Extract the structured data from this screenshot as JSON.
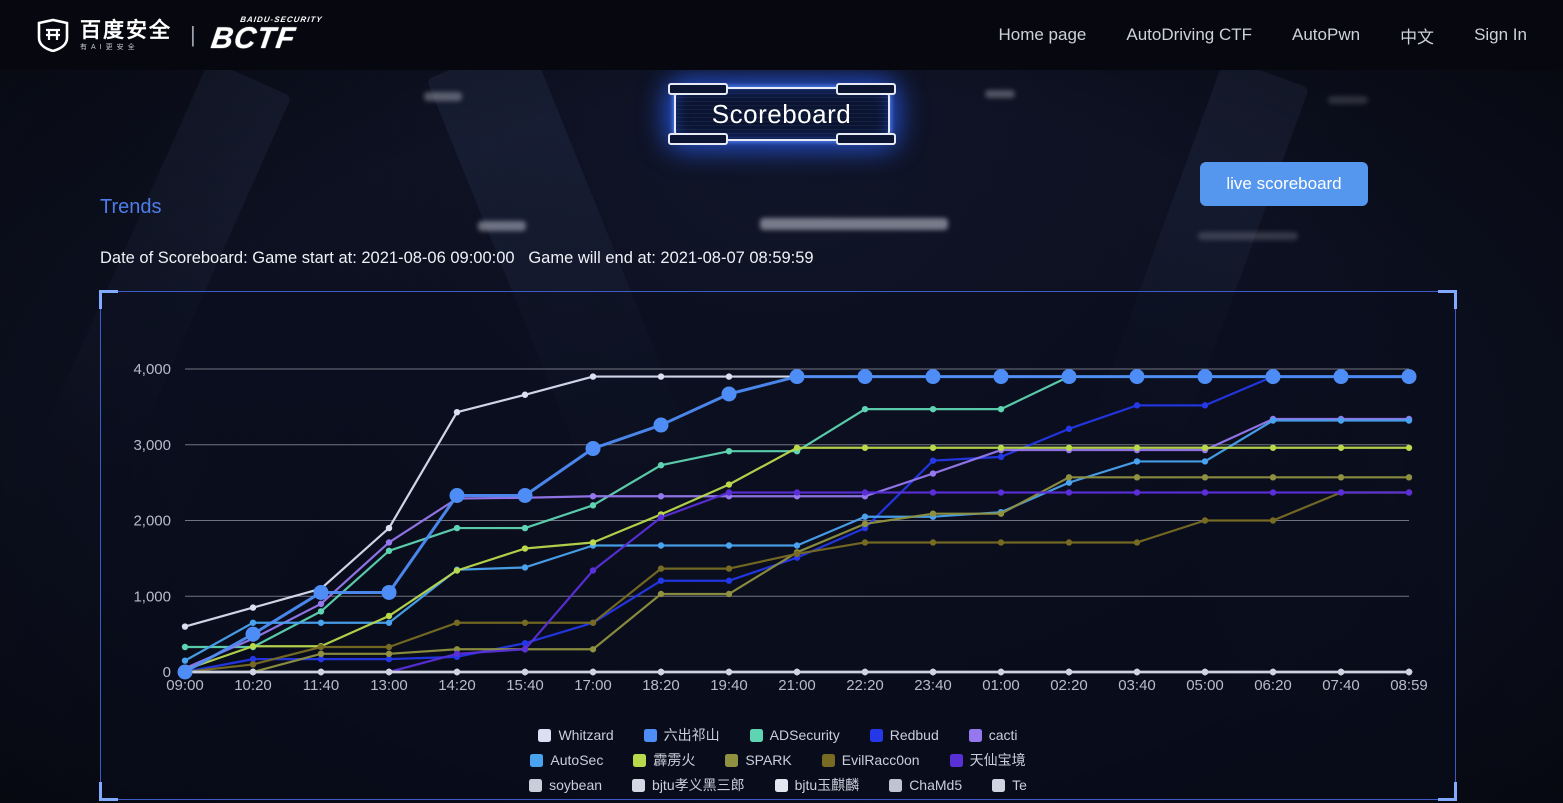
{
  "navbar": {
    "brand_cn": "百度安全",
    "brand_sub": "有AI更安全",
    "bctf_top": "BAIDU-SECURITY",
    "bctf": "BCTF",
    "items": [
      {
        "label": "Home page"
      },
      {
        "label": "AutoDriving CTF"
      },
      {
        "label": "AutoPwn"
      },
      {
        "label": "中文"
      },
      {
        "label": "Sign In"
      }
    ]
  },
  "header": {
    "title": "Scoreboard",
    "live_button_label": "live scoreboard"
  },
  "section": {
    "title": "Trends",
    "date_line": "Date of Scoreboard: Game start at: 2021-08-06 09:00:00   Game will end at: 2021-08-07 08:59:59"
  },
  "colors": {
    "accent_blue": "#4e7de9",
    "button_blue": "#5596ee",
    "panel_border": "#4868e6",
    "axis_text": "#b6bcc9",
    "gridline": "#c6cad4"
  },
  "chart_data": {
    "type": "line",
    "title": "Score trends",
    "xlabel": "",
    "ylabel": "",
    "x": [
      "09:00",
      "10:20",
      "11:40",
      "13:00",
      "14:20",
      "15:40",
      "17:00",
      "18:20",
      "19:40",
      "21:00",
      "22:20",
      "23:40",
      "01:00",
      "02:20",
      "03:40",
      "05:00",
      "06:20",
      "07:40",
      "08:59"
    ],
    "ylim": [
      0,
      4000
    ],
    "yticks": [
      "0",
      "1,000",
      "2,000",
      "3,000",
      "4,000"
    ],
    "grid": true,
    "legend_position": "bottom",
    "series": [
      {
        "name": "Whitzard",
        "color": "#dadff2",
        "emphasis": false,
        "values": [
          600,
          850,
          1100,
          1900,
          3430,
          3660,
          3900,
          3900,
          3900,
          3900,
          3900,
          3900,
          3900,
          3900,
          3900,
          3900,
          3900,
          3900,
          3900
        ]
      },
      {
        "name": "六出祁山",
        "color": "#4e8df5",
        "emphasis": true,
        "values": [
          0,
          500,
          1050,
          1050,
          2330,
          2330,
          2950,
          3260,
          3670,
          3900,
          3900,
          3900,
          3900,
          3900,
          3900,
          3900,
          3900,
          3900,
          3900
        ]
      },
      {
        "name": "ADSecurity",
        "color": "#5fd4b2",
        "emphasis": false,
        "values": [
          330,
          330,
          800,
          1600,
          1900,
          1900,
          2200,
          2730,
          2915,
          2915,
          3470,
          3470,
          3470,
          3900,
          3900,
          3900,
          3900,
          3900,
          3900
        ]
      },
      {
        "name": "Redbud",
        "color": "#2438e8",
        "emphasis": false,
        "values": [
          0,
          170,
          170,
          170,
          200,
          380,
          650,
          1205,
          1205,
          1510,
          1900,
          2790,
          2840,
          3210,
          3520,
          3520,
          3900,
          3900,
          3900
        ]
      },
      {
        "name": "cacti",
        "color": "#9678ee",
        "emphasis": false,
        "values": [
          50,
          440,
          900,
          1710,
          2290,
          2300,
          2320,
          2320,
          2320,
          2320,
          2320,
          2620,
          2930,
          2930,
          2930,
          2930,
          3340,
          3340,
          3340
        ]
      },
      {
        "name": "AutoSec",
        "color": "#4aa3ef",
        "emphasis": false,
        "values": [
          150,
          650,
          650,
          650,
          1350,
          1380,
          1670,
          1670,
          1670,
          1670,
          2050,
          2050,
          2110,
          2500,
          2780,
          2780,
          3320,
          3320,
          3320
        ]
      },
      {
        "name": "霹雳火",
        "color": "#b9d94d",
        "emphasis": false,
        "values": [
          30,
          340,
          340,
          740,
          1340,
          1630,
          1710,
          2080,
          2475,
          2960,
          2960,
          2960,
          2960,
          2960,
          2960,
          2960,
          2960,
          2960,
          2960
        ]
      },
      {
        "name": "SPARK",
        "color": "#8f9140",
        "emphasis": false,
        "values": [
          0,
          0,
          240,
          240,
          300,
          300,
          300,
          1030,
          1030,
          1580,
          1955,
          2090,
          2090,
          2570,
          2570,
          2570,
          2570,
          2570,
          2570
        ]
      },
      {
        "name": "EvilRacc0on",
        "color": "#776b23",
        "emphasis": false,
        "values": [
          0,
          100,
          330,
          330,
          650,
          650,
          650,
          1365,
          1365,
          1560,
          1710,
          1710,
          1710,
          1710,
          1710,
          2000,
          2000,
          2370,
          2370
        ]
      },
      {
        "name": "天仙宝境",
        "color": "#5a2fd8",
        "emphasis": false,
        "values": [
          0,
          0,
          0,
          0,
          240,
          300,
          1340,
          2040,
          2370,
          2370,
          2370,
          2370,
          2370,
          2370,
          2370,
          2370,
          2370,
          2370,
          2370
        ]
      },
      {
        "name": "soybean",
        "color": "#c9cedb",
        "emphasis": false,
        "values": [
          0,
          0,
          0,
          0,
          0,
          0,
          0,
          0,
          0,
          0,
          0,
          0,
          0,
          0,
          0,
          0,
          0,
          0,
          0
        ]
      },
      {
        "name": "bjtu孝义黑三郎",
        "color": "#d4d8e3",
        "emphasis": false,
        "values": [
          0,
          0,
          0,
          0,
          0,
          0,
          0,
          0,
          0,
          0,
          0,
          0,
          0,
          0,
          0,
          0,
          0,
          0,
          0
        ]
      },
      {
        "name": "bjtu玉麒麟",
        "color": "#e3e6ee",
        "emphasis": false,
        "values": [
          0,
          0,
          0,
          0,
          0,
          0,
          0,
          0,
          0,
          0,
          0,
          0,
          0,
          0,
          0,
          0,
          0,
          0,
          0
        ]
      },
      {
        "name": "ChaMd5",
        "color": "#bfc4d2",
        "emphasis": false,
        "values": [
          0,
          0,
          0,
          0,
          0,
          0,
          0,
          0,
          0,
          0,
          0,
          0,
          0,
          0,
          0,
          0,
          0,
          0,
          0
        ]
      },
      {
        "name": "Te",
        "color": "#d0d4e0",
        "emphasis": false,
        "values": [
          0,
          0,
          0,
          0,
          0,
          0,
          0,
          0,
          0,
          0,
          0,
          0,
          0,
          0,
          0,
          0,
          0,
          0,
          0
        ]
      }
    ]
  }
}
